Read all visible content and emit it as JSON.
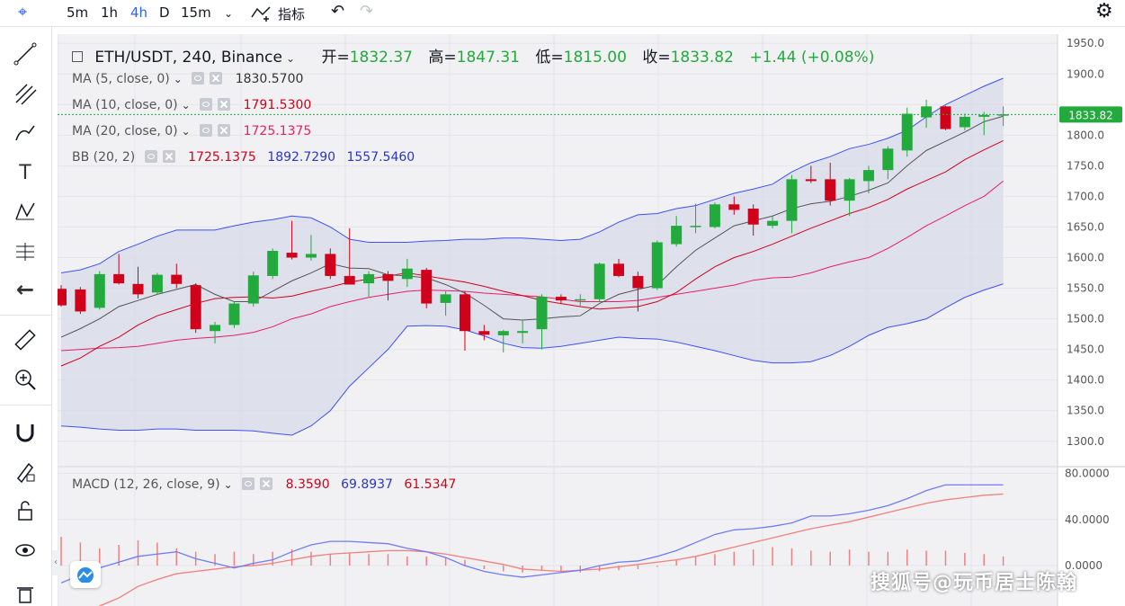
{
  "toolbar": {
    "intervals": [
      "5m",
      "1h",
      "4h",
      "D",
      "15m"
    ],
    "active_interval": "4h",
    "indicators_label": "指标"
  },
  "legend": {
    "symbol": "ETH/USDT, 240, Binance",
    "open_label": "开=",
    "open": "1832.37",
    "high_label": "高=",
    "high": "1847.31",
    "low_label": "低=",
    "low": "1815.00",
    "close_label": "收=",
    "close": "1833.82",
    "change": "+1.44 (+0.08%)",
    "ma5_name": "MA (5, close, 0)",
    "ma5_value": "1830.5700",
    "ma10_name": "MA (10, close, 0)",
    "ma10_value": "1791.5300",
    "ma20_name": "MA (20, close, 0)",
    "ma20_value": "1725.1375",
    "bb_name": "BB (20, 2)",
    "bb_basis": "1725.1375",
    "bb_upper": "1892.7290",
    "bb_lower": "1557.5460",
    "macd_name": "MACD (12, 26, close, 9)",
    "macd_hist": "8.3590",
    "macd_line": "69.8937",
    "macd_signal": "61.5347"
  },
  "watermark": "搜狐号@玩币居士陈翰",
  "colors": {
    "up": "#22ab3c",
    "down": "#d0021b",
    "ma5": "#555555",
    "ma10": "#d0021b",
    "ma20": "#e91e63",
    "bb_upper": "#3f51f5",
    "bb_band": "#d7d9ea",
    "macd_line": "#6f7cf5",
    "macd_signal": "#f08080",
    "hist": "#f08080"
  },
  "chart_data": {
    "type": "candlestick",
    "price_axis": {
      "ticks": [
        1950,
        1900,
        1850,
        1800,
        1750,
        1700,
        1650,
        1600,
        1550,
        1500,
        1450,
        1400,
        1350,
        1300
      ],
      "ylim": [
        1260,
        1965
      ]
    },
    "last_price": "1833.82",
    "candles": [
      {
        "o": 1549,
        "h": 1555,
        "l": 1520,
        "c": 1522
      },
      {
        "o": 1548,
        "h": 1552,
        "l": 1508,
        "c": 1512
      },
      {
        "o": 1518,
        "h": 1578,
        "l": 1515,
        "c": 1573
      },
      {
        "o": 1573,
        "h": 1606,
        "l": 1556,
        "c": 1558
      },
      {
        "o": 1557,
        "h": 1585,
        "l": 1533,
        "c": 1540
      },
      {
        "o": 1543,
        "h": 1575,
        "l": 1540,
        "c": 1572
      },
      {
        "o": 1572,
        "h": 1590,
        "l": 1550,
        "c": 1557
      },
      {
        "o": 1555,
        "h": 1558,
        "l": 1477,
        "c": 1483
      },
      {
        "o": 1480,
        "h": 1495,
        "l": 1460,
        "c": 1490
      },
      {
        "o": 1490,
        "h": 1528,
        "l": 1485,
        "c": 1525
      },
      {
        "o": 1525,
        "h": 1577,
        "l": 1520,
        "c": 1571
      },
      {
        "o": 1570,
        "h": 1615,
        "l": 1565,
        "c": 1611
      },
      {
        "o": 1608,
        "h": 1660,
        "l": 1597,
        "c": 1600
      },
      {
        "o": 1600,
        "h": 1637,
        "l": 1595,
        "c": 1606
      },
      {
        "o": 1606,
        "h": 1615,
        "l": 1565,
        "c": 1570
      },
      {
        "o": 1570,
        "h": 1648,
        "l": 1558,
        "c": 1556
      },
      {
        "o": 1558,
        "h": 1578,
        "l": 1536,
        "c": 1573
      },
      {
        "o": 1573,
        "h": 1578,
        "l": 1530,
        "c": 1562
      },
      {
        "o": 1565,
        "h": 1598,
        "l": 1552,
        "c": 1582
      },
      {
        "o": 1580,
        "h": 1583,
        "l": 1517,
        "c": 1525
      },
      {
        "o": 1526,
        "h": 1545,
        "l": 1505,
        "c": 1540
      },
      {
        "o": 1540,
        "h": 1545,
        "l": 1448,
        "c": 1480
      },
      {
        "o": 1480,
        "h": 1490,
        "l": 1465,
        "c": 1474
      },
      {
        "o": 1473,
        "h": 1482,
        "l": 1445,
        "c": 1480
      },
      {
        "o": 1477,
        "h": 1498,
        "l": 1460,
        "c": 1480
      },
      {
        "o": 1483,
        "h": 1540,
        "l": 1450,
        "c": 1536
      },
      {
        "o": 1536,
        "h": 1540,
        "l": 1524,
        "c": 1530
      },
      {
        "o": 1530,
        "h": 1540,
        "l": 1520,
        "c": 1532
      },
      {
        "o": 1532,
        "h": 1592,
        "l": 1527,
        "c": 1590
      },
      {
        "o": 1590,
        "h": 1598,
        "l": 1568,
        "c": 1570
      },
      {
        "o": 1570,
        "h": 1577,
        "l": 1512,
        "c": 1550
      },
      {
        "o": 1550,
        "h": 1628,
        "l": 1547,
        "c": 1625
      },
      {
        "o": 1622,
        "h": 1668,
        "l": 1618,
        "c": 1652
      },
      {
        "o": 1650,
        "h": 1688,
        "l": 1640,
        "c": 1652
      },
      {
        "o": 1650,
        "h": 1690,
        "l": 1648,
        "c": 1687
      },
      {
        "o": 1687,
        "h": 1700,
        "l": 1670,
        "c": 1678
      },
      {
        "o": 1680,
        "h": 1687,
        "l": 1636,
        "c": 1654
      },
      {
        "o": 1652,
        "h": 1668,
        "l": 1648,
        "c": 1660
      },
      {
        "o": 1660,
        "h": 1735,
        "l": 1640,
        "c": 1728
      },
      {
        "o": 1728,
        "h": 1750,
        "l": 1722,
        "c": 1725
      },
      {
        "o": 1728,
        "h": 1755,
        "l": 1685,
        "c": 1693
      },
      {
        "o": 1693,
        "h": 1730,
        "l": 1668,
        "c": 1728
      },
      {
        "o": 1725,
        "h": 1750,
        "l": 1705,
        "c": 1743
      },
      {
        "o": 1743,
        "h": 1782,
        "l": 1728,
        "c": 1778
      },
      {
        "o": 1775,
        "h": 1845,
        "l": 1765,
        "c": 1835
      },
      {
        "o": 1829,
        "h": 1858,
        "l": 1812,
        "c": 1847
      },
      {
        "o": 1847,
        "h": 1848,
        "l": 1808,
        "c": 1810
      },
      {
        "o": 1813,
        "h": 1835,
        "l": 1808,
        "c": 1830
      },
      {
        "o": 1830,
        "h": 1838,
        "l": 1800,
        "c": 1833
      },
      {
        "o": 1832,
        "h": 1847,
        "l": 1815,
        "c": 1834
      }
    ],
    "ma5": [
      1470,
      1484,
      1500,
      1520,
      1530,
      1540,
      1548,
      1556,
      1540,
      1528,
      1528,
      1545,
      1562,
      1575,
      1590,
      1583,
      1582,
      1572,
      1570,
      1567,
      1556,
      1542,
      1522,
      1500,
      1498,
      1500,
      1503,
      1505,
      1525,
      1540,
      1548,
      1555,
      1585,
      1612,
      1632,
      1652,
      1660,
      1668,
      1680,
      1688,
      1692,
      1700,
      1710,
      1722,
      1750,
      1775,
      1790,
      1805,
      1822,
      1831
    ],
    "ma10": [
      1423,
      1436,
      1455,
      1470,
      1490,
      1505,
      1515,
      1525,
      1533,
      1535,
      1536,
      1534,
      1537,
      1545,
      1552,
      1560,
      1565,
      1570,
      1575,
      1570,
      1565,
      1560,
      1553,
      1545,
      1538,
      1530,
      1525,
      1520,
      1516,
      1518,
      1520,
      1528,
      1543,
      1565,
      1585,
      1600,
      1610,
      1622,
      1635,
      1648,
      1660,
      1672,
      1682,
      1695,
      1712,
      1726,
      1740,
      1760,
      1776,
      1791
    ],
    "ma20": [
      1448,
      1450,
      1452,
      1453,
      1455,
      1460,
      1465,
      1468,
      1470,
      1473,
      1478,
      1487,
      1500,
      1508,
      1520,
      1528,
      1535,
      1540,
      1545,
      1547,
      1546,
      1545,
      1542,
      1540,
      1538,
      1536,
      1532,
      1528,
      1528,
      1528,
      1530,
      1535,
      1540,
      1545,
      1550,
      1555,
      1563,
      1567,
      1568,
      1575,
      1585,
      1593,
      1600,
      1615,
      1633,
      1652,
      1668,
      1685,
      1700,
      1725
    ],
    "bb_upper": [
      1575,
      1580,
      1590,
      1610,
      1622,
      1635,
      1645,
      1645,
      1645,
      1652,
      1658,
      1662,
      1668,
      1665,
      1650,
      1630,
      1625,
      1625,
      1625,
      1627,
      1628,
      1630,
      1630,
      1632,
      1632,
      1630,
      1628,
      1630,
      1642,
      1658,
      1670,
      1672,
      1680,
      1685,
      1695,
      1705,
      1712,
      1720,
      1740,
      1755,
      1765,
      1778,
      1785,
      1795,
      1808,
      1830,
      1850,
      1865,
      1880,
      1893
    ],
    "bb_lower": [
      1325,
      1323,
      1320,
      1318,
      1318,
      1320,
      1320,
      1318,
      1318,
      1318,
      1317,
      1313,
      1310,
      1325,
      1350,
      1390,
      1420,
      1450,
      1488,
      1489,
      1488,
      1482,
      1472,
      1460,
      1453,
      1452,
      1455,
      1460,
      1465,
      1470,
      1468,
      1467,
      1462,
      1455,
      1448,
      1440,
      1432,
      1428,
      1428,
      1430,
      1440,
      1455,
      1473,
      1486,
      1492,
      1500,
      1518,
      1535,
      1547,
      1557
    ],
    "macd": {
      "ylim": [
        -35,
        85
      ],
      "ticks": [
        80,
        40,
        0
      ],
      "macd_line": [
        -15,
        -8,
        -2,
        3,
        8,
        10,
        12,
        6,
        2,
        -2,
        2,
        5,
        12,
        18,
        21,
        21,
        20,
        19,
        15,
        12,
        7,
        0,
        -5,
        -8,
        -10,
        -8,
        -6,
        -4,
        0,
        3,
        4,
        8,
        13,
        20,
        27,
        31,
        32,
        34,
        37,
        43,
        43,
        45,
        48,
        52,
        58,
        65,
        70,
        70,
        70,
        70
      ],
      "signal_line": [
        -58,
        -45,
        -35,
        -28,
        -18,
        -12,
        -7,
        -5,
        -3,
        -1,
        0,
        2,
        5,
        8,
        10,
        11,
        12,
        13,
        13,
        12,
        10,
        7,
        4,
        1,
        -3,
        -4,
        -5,
        -4,
        -3,
        -1,
        1,
        3,
        5,
        8,
        12,
        16,
        20,
        24,
        28,
        32,
        35,
        38,
        42,
        46,
        50,
        54,
        57,
        59,
        61,
        62
      ],
      "hist": [
        25,
        20,
        15,
        18,
        22,
        20,
        15,
        12,
        10,
        12,
        10,
        12,
        14,
        12,
        10,
        11,
        10,
        10,
        8,
        8,
        7,
        5,
        -3,
        -5,
        -6,
        -4,
        -5,
        -6,
        -5,
        -4,
        -3,
        -1,
        5,
        8,
        10,
        12,
        14,
        16,
        15,
        13,
        12,
        14,
        12,
        12,
        14,
        13,
        13,
        11,
        10,
        8
      ]
    }
  }
}
